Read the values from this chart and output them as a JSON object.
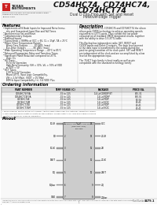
{
  "bg_color": "#ffffff",
  "title_line1": "CD54HC74, CD74HC74,",
  "title_line2": "CD74HCT74",
  "subtitle1": "Dual D Flip-Flop with Set and Reset",
  "subtitle2": "Positive-Edge Trigger",
  "logo_text1": "TEXAS",
  "logo_text2": "INSTRUMENTS",
  "doc_sub1": "Dual D Flip-Flop with Set and Reset Positive-Edge",
  "doc_sub2": "Triggered D-Type Flip-Flops",
  "date": "January 1998",
  "features_title": "Features",
  "description_title": "Description",
  "ordering_title": "Ordering Information",
  "pinout_title": "Pinout",
  "ordering_col_headers": [
    "PART NUMBER",
    "TEMP RANGE (C)",
    "PACKAGE",
    "PRICE EA."
  ],
  "ordering_rows": [
    [
      "CD54HC74F3A",
      "-55 to 125",
      "14-Ld CERDIP 8T",
      "$15.31"
    ],
    [
      "CD54HCT74F3A",
      "-55 to 125",
      "14-Ld PDM*",
      "$10.01"
    ],
    [
      "CD74HC74E",
      "-55 to 125",
      "14-Ld PDIP",
      "$0.34"
    ],
    [
      "CD74HC74M",
      "-55 to 125",
      "14-Ld SOIC",
      "$0.41"
    ],
    [
      "CD74HCT74E",
      "-55 to 125",
      "14-Ld PDIP",
      "$0.41"
    ],
    [
      "CD74HCT74M",
      "-55 to 125",
      "14-Ld SOIC",
      "$0.41"
    ]
  ],
  "left_pins": [
    "1CLR",
    "1D",
    "1CLK",
    "1SET",
    "1Q",
    "1Qbar",
    "GND"
  ],
  "right_pins": [
    "VCC",
    "2CLR",
    "2D",
    "2CLK",
    "2SET",
    "2Q",
    "2Qbar"
  ],
  "chip_label1": "CD54HC74, CD74HC74, CD74HCT74",
  "chip_label2": "(CER, PDIP, CDIP)",
  "chip_label3": "TOP VIEW",
  "part_number_label": "Part Number",
  "part_number": "1479.1",
  "footer_text": "IMPORTANT NOTICE: These products conform to specifications per the terms of the applicable data sheet. Modifications to products contained in the data sheet are prohibited.",
  "copyright": "Copyright © Harris Corporation 1998"
}
